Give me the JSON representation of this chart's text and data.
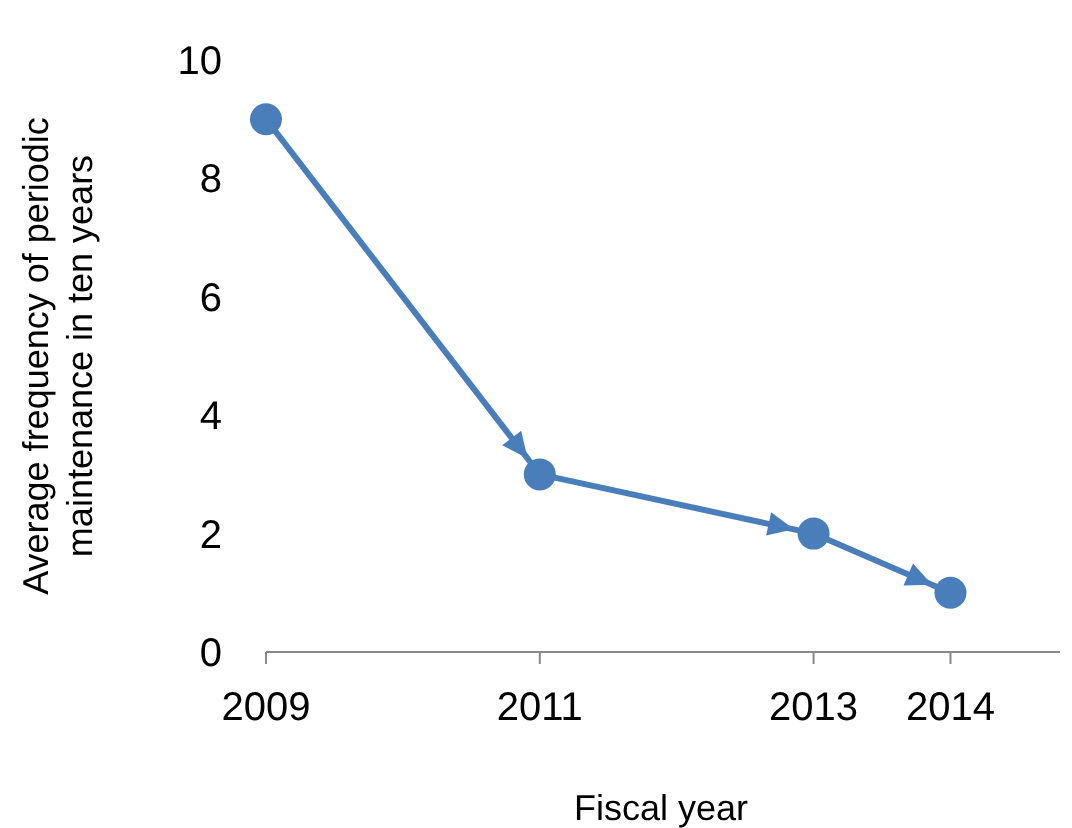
{
  "chart_data": {
    "type": "line",
    "xlabel": "Fiscal year",
    "ylabel": "Average frequency of periodic maintenance in ten years",
    "x": [
      2009,
      2011,
      2013,
      2014
    ],
    "series": [
      {
        "color": "#4a7ebb",
        "values": [
          9,
          3,
          2,
          1
        ]
      }
    ],
    "xlim": [
      2009,
      2014.8
    ],
    "xticks": [
      2009,
      2011,
      2013,
      2014
    ],
    "ylim": [
      0,
      10
    ],
    "yticks": [
      0,
      2,
      4,
      6,
      8,
      10
    ],
    "grid": false,
    "marker": "circle",
    "line_style": "solid"
  }
}
